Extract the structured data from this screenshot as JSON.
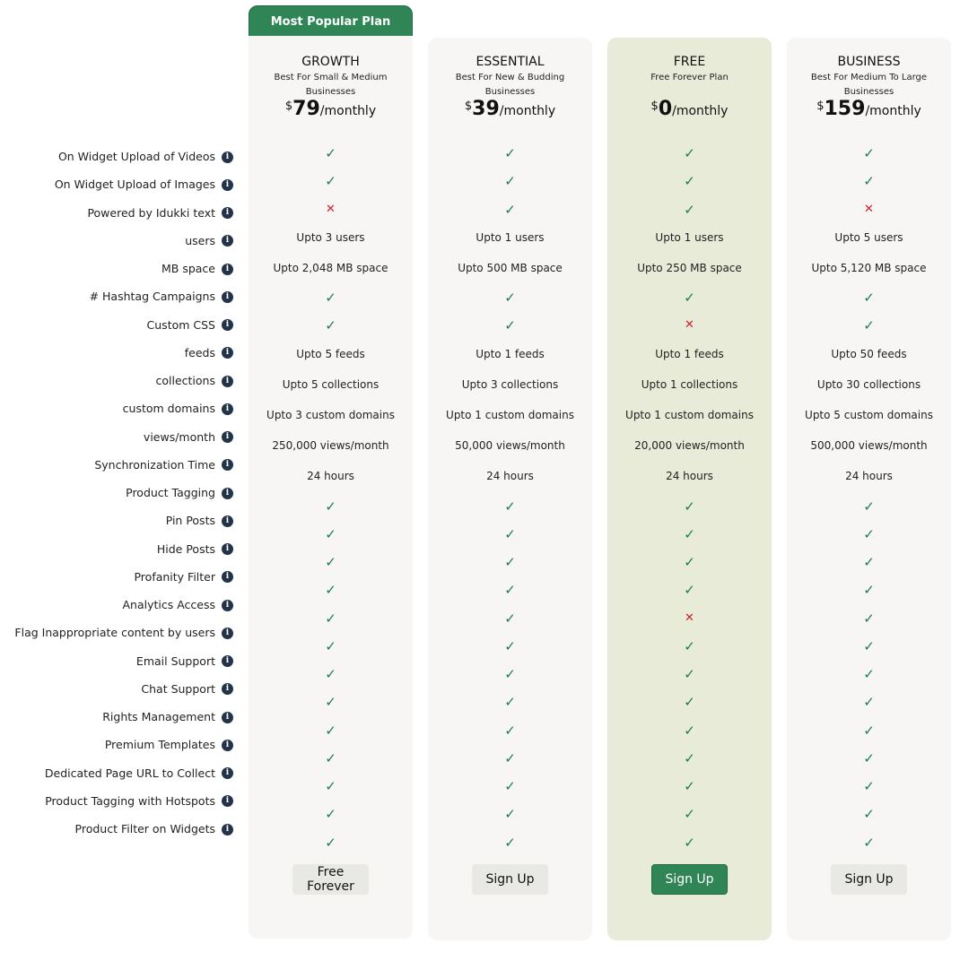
{
  "banner": "Most Popular Plan",
  "plans": [
    {
      "name": "GROWTH",
      "desc": "Best For Small & Medium Businesses",
      "currency": "$",
      "price": "79",
      "period": "/monthly",
      "button": "Free Forever",
      "highlight": false,
      "popular": true
    },
    {
      "name": "ESSENTIAL",
      "desc": "Best For New & Budding Businesses",
      "currency": "$",
      "price": "39",
      "period": "/monthly",
      "button": "Sign Up",
      "highlight": false,
      "popular": false
    },
    {
      "name": "FREE",
      "desc": "Free Forever Plan",
      "currency": "$",
      "price": "0",
      "period": "/monthly",
      "button": "Sign Up",
      "highlight": true,
      "popular": false
    },
    {
      "name": "BUSINESS",
      "desc": "Best For Medium To Large Businesses",
      "currency": "$",
      "price": "159",
      "period": "/monthly",
      "button": "Sign Up",
      "highlight": false,
      "popular": false
    }
  ],
  "colors": {
    "accent": "#2f8555",
    "check": "#1c7a5b",
    "cross": "#d0202a",
    "highlight_bg": "#e7ebd8",
    "info_icon": "#23344a"
  },
  "features": [
    {
      "label": "On Widget Upload of Videos",
      "values": [
        "check",
        "check",
        "check",
        "check"
      ]
    },
    {
      "label": "On Widget Upload of Images",
      "values": [
        "check",
        "check",
        "check",
        "check"
      ]
    },
    {
      "label": "Powered by Idukki text",
      "values": [
        "cross",
        "check",
        "check",
        "cross"
      ]
    },
    {
      "label": "users",
      "values": [
        "Upto 3 users",
        "Upto 1 users",
        "Upto 1 users",
        "Upto 5 users"
      ]
    },
    {
      "label": "MB space",
      "values": [
        "Upto 2,048 MB space",
        "Upto 500 MB space",
        "Upto 250 MB space",
        "Upto 5,120 MB space"
      ]
    },
    {
      "label": "# Hashtag Campaigns",
      "values": [
        "check",
        "check",
        "check",
        "check"
      ]
    },
    {
      "label": "Custom CSS",
      "values": [
        "check",
        "check",
        "cross",
        "check"
      ]
    },
    {
      "label": "feeds",
      "values": [
        "Upto 5 feeds",
        "Upto 1 feeds",
        "Upto 1 feeds",
        "Upto 50 feeds"
      ]
    },
    {
      "label": "collections",
      "values": [
        "Upto 5 collections",
        "Upto 3 collections",
        "Upto 1 collections",
        "Upto 30 collections"
      ]
    },
    {
      "label": "custom domains",
      "values": [
        "Upto 3 custom domains",
        "Upto 1 custom domains",
        "Upto 1 custom domains",
        "Upto 5 custom domains"
      ]
    },
    {
      "label": "views/month",
      "values": [
        "250,000 views/month",
        "50,000 views/month",
        "20,000 views/month",
        "500,000 views/month"
      ]
    },
    {
      "label": "Synchronization Time",
      "values": [
        "24 hours",
        "24 hours",
        "24 hours",
        "24 hours"
      ]
    },
    {
      "label": "Product Tagging",
      "values": [
        "check",
        "check",
        "check",
        "check"
      ]
    },
    {
      "label": "Pin Posts",
      "values": [
        "check",
        "check",
        "check",
        "check"
      ]
    },
    {
      "label": "Hide Posts",
      "values": [
        "check",
        "check",
        "check",
        "check"
      ]
    },
    {
      "label": "Profanity Filter",
      "values": [
        "check",
        "check",
        "check",
        "check"
      ]
    },
    {
      "label": "Analytics Access",
      "values": [
        "check",
        "check",
        "cross",
        "check"
      ]
    },
    {
      "label": "Flag Inappropriate content by users",
      "values": [
        "check",
        "check",
        "check",
        "check"
      ]
    },
    {
      "label": "Email Support",
      "values": [
        "check",
        "check",
        "check",
        "check"
      ]
    },
    {
      "label": "Chat Support",
      "values": [
        "check",
        "check",
        "check",
        "check"
      ]
    },
    {
      "label": "Rights Management",
      "values": [
        "check",
        "check",
        "check",
        "check"
      ]
    },
    {
      "label": "Premium Templates",
      "values": [
        "check",
        "check",
        "check",
        "check"
      ]
    },
    {
      "label": "Dedicated Page URL to Collect",
      "values": [
        "check",
        "check",
        "check",
        "check"
      ]
    },
    {
      "label": "Product Tagging with Hotspots",
      "values": [
        "check",
        "check",
        "check",
        "check"
      ]
    },
    {
      "label": "Product Filter on Widgets",
      "values": [
        "check",
        "check",
        "check",
        "check"
      ]
    }
  ]
}
